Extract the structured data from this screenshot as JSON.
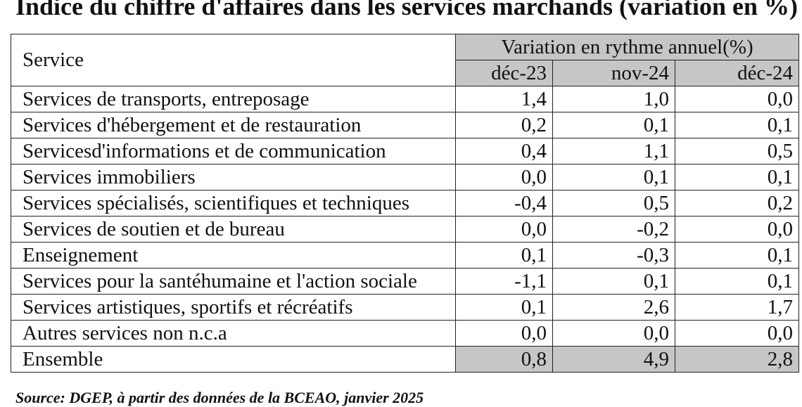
{
  "title": "Indice du chiffre d'affaires dans les services marchands (variation en %)",
  "header": {
    "service_label": "Service",
    "band_label": "Variation en rythme annuel(%)",
    "periods": [
      "déc-23",
      "nov-24",
      "déc-24"
    ]
  },
  "rows": [
    {
      "service": "Services de transports, entreposage",
      "values": [
        "1,4",
        "1,0",
        "0,0"
      ]
    },
    {
      "service": "Services d'hébergement et de restauration",
      "values": [
        "0,2",
        "0,1",
        "0,1"
      ]
    },
    {
      "service": "Servicesd'informations et de communication",
      "values": [
        "0,4",
        "1,1",
        "0,5"
      ]
    },
    {
      "service": "Services immobiliers",
      "values": [
        "0,0",
        "0,1",
        "0,1"
      ]
    },
    {
      "service": "Services spécialisés, scientifiques et techniques",
      "values": [
        "-0,4",
        "0,5",
        "0,2"
      ]
    },
    {
      "service": "Services de soutien et de bureau",
      "values": [
        "0,0",
        "-0,2",
        "0,0"
      ]
    },
    {
      "service": "Enseignement",
      "values": [
        "0,1",
        "-0,3",
        "0,1"
      ]
    },
    {
      "service": "Services pour la santéhumaine et l'action sociale",
      "values": [
        "-1,1",
        "0,1",
        "0,1"
      ]
    },
    {
      "service": "Services artistiques, sportifs et récréatifs",
      "values": [
        "0,1",
        "2,6",
        "1,7"
      ]
    },
    {
      "service": "Autres services non n.c.a",
      "values": [
        "0,0",
        "0,0",
        "0,0"
      ]
    }
  ],
  "total": {
    "service": "Ensemble",
    "values": [
      "0,8",
      "4,9",
      "2,8"
    ]
  },
  "source": "Source: DGEP, à partir des données de la BCEAO, janvier 2025",
  "colors": {
    "header_fill": "#c6c6c6",
    "border": "#222222",
    "text": "#111111"
  }
}
